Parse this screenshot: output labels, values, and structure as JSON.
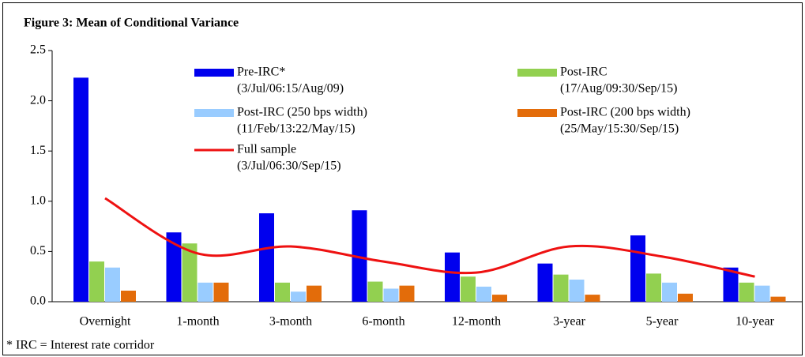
{
  "chart_data": {
    "type": "bar",
    "title": "Figure 3: Mean of Conditional Variance",
    "footnote": "* IRC = Interest rate corridor",
    "categories": [
      "Overnight",
      "1-month",
      "3-month",
      "6-month",
      "12-month",
      "3-year",
      "5-year",
      "10-year"
    ],
    "series": [
      {
        "name": "Pre-IRC*",
        "period": "(3/Jul/06:15/Aug/09)",
        "color": "#0000ee",
        "values": [
          2.23,
          0.69,
          0.88,
          0.91,
          0.49,
          0.38,
          0.66,
          0.34
        ]
      },
      {
        "name": "Post-IRC",
        "period": "(17/Aug/09:30/Sep/15)",
        "color": "#92d050",
        "values": [
          0.4,
          0.58,
          0.19,
          0.2,
          0.25,
          0.27,
          0.28,
          0.19
        ]
      },
      {
        "name": "Post-IRC (250 bps width)",
        "period": "(11/Feb/13:22/May/15)",
        "color": "#99ccff",
        "values": [
          0.34,
          0.19,
          0.1,
          0.13,
          0.15,
          0.22,
          0.19,
          0.16
        ]
      },
      {
        "name": "Post-IRC (200 bps width)",
        "period": "(25/May/15:30/Sep/15)",
        "color": "#e36c0a",
        "values": [
          0.11,
          0.19,
          0.16,
          0.16,
          0.07,
          0.07,
          0.08,
          0.05
        ]
      },
      {
        "name": "Full sample",
        "period": "(3/Jul/06:30/Sep/15)",
        "color": "#ee1111",
        "type": "line",
        "values": [
          1.03,
          0.48,
          0.55,
          0.4,
          0.29,
          0.55,
          0.45,
          0.25
        ]
      }
    ],
    "ylim": [
      0,
      2.5
    ],
    "yticks": [
      {
        "value": 0,
        "label": "0.0"
      },
      0.5,
      {
        "value": 1,
        "label": "1.0"
      },
      1.5,
      {
        "value": 2,
        "label": "2.0"
      },
      2.5
    ],
    "grid": false
  }
}
